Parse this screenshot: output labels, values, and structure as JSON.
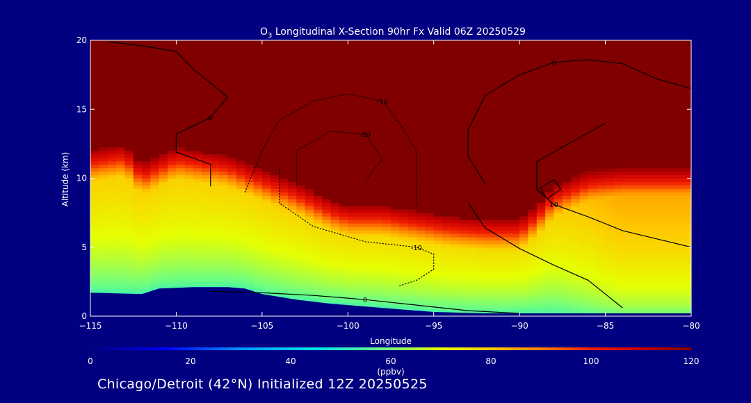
{
  "chart_data": {
    "type": "heatmap",
    "title": {
      "species": "O",
      "subscript": "3",
      "rest": " Longitudinal X-Section 90hr  Fx Valid 06Z 20250529"
    },
    "xlabel": "Longitude",
    "ylabel": "Altitude (km)",
    "xlim": [
      -115,
      -80
    ],
    "ylim": [
      0,
      20
    ],
    "x_ticks": [
      {
        "value": -115,
        "label": "−115"
      },
      {
        "value": -110,
        "label": "−110"
      },
      {
        "value": -105,
        "label": "−105"
      },
      {
        "value": -100,
        "label": "−100"
      },
      {
        "value": -95,
        "label": "−95"
      },
      {
        "value": -90,
        "label": "−90"
      },
      {
        "value": -85,
        "label": "−85"
      },
      {
        "value": -80,
        "label": "−80"
      }
    ],
    "y_ticks": [
      {
        "value": 0,
        "label": "0"
      },
      {
        "value": 5,
        "label": "5"
      },
      {
        "value": 10,
        "label": "10"
      },
      {
        "value": 15,
        "label": "15"
      },
      {
        "value": 20,
        "label": "20"
      }
    ],
    "colorbar": {
      "label": "(ppbv)",
      "range": [
        0,
        120
      ],
      "ticks": [
        {
          "value": 0,
          "label": "0"
        },
        {
          "value": 20,
          "label": "20"
        },
        {
          "value": 40,
          "label": "40"
        },
        {
          "value": 60,
          "label": "60"
        },
        {
          "value": 80,
          "label": "80"
        },
        {
          "value": 100,
          "label": "100"
        },
        {
          "value": 120,
          "label": "120"
        }
      ]
    },
    "terrain_km": [
      [
        -115,
        1.7
      ],
      [
        -112,
        1.6
      ],
      [
        -111,
        2.0
      ],
      [
        -109,
        2.1
      ],
      [
        -107,
        2.1
      ],
      [
        -106,
        2.0
      ],
      [
        -105,
        1.6
      ],
      [
        -103,
        1.2
      ],
      [
        -101,
        0.9
      ],
      [
        -99,
        0.7
      ],
      [
        -97,
        0.5
      ],
      [
        -95,
        0.3
      ],
      [
        -92,
        0.2
      ],
      [
        -90,
        0.2
      ],
      [
        -85,
        0.2
      ],
      [
        -82,
        0.2
      ],
      [
        -80,
        0.2
      ]
    ],
    "tropopause_km": [
      [
        -115,
        12.0
      ],
      [
        -113,
        12.4
      ],
      [
        -112,
        11.0
      ],
      [
        -110,
        12.2
      ],
      [
        -109,
        12.0
      ],
      [
        -107,
        11.6
      ],
      [
        -105,
        10.6
      ],
      [
        -103,
        9.6
      ],
      [
        -101,
        8.4
      ],
      [
        -100,
        8.0
      ],
      [
        -98,
        8.0
      ],
      [
        -96,
        7.6
      ],
      [
        -94,
        7.2
      ],
      [
        -92,
        7.0
      ],
      [
        -90,
        7.0
      ],
      [
        -89,
        8.0
      ],
      [
        -88,
        9.4
      ],
      [
        -86,
        10.6
      ],
      [
        -84,
        11.0
      ],
      [
        -82,
        11.0
      ],
      [
        -80,
        11.0
      ]
    ],
    "profile": {
      "above_tropopause_ppbv": 120,
      "near_surface_ppbv": 52,
      "below_tropopause_ppbv": 82,
      "east_enhancement_ppbv": 6
    },
    "contours": [
      {
        "label": "0",
        "style": "solid",
        "points": [
          [
            -114,
            19.9
          ],
          [
            -112,
            19.6
          ],
          [
            -110,
            19.2
          ],
          [
            -109,
            17.9
          ],
          [
            -107,
            15.9
          ],
          [
            -108,
            14.4
          ],
          [
            -110,
            13.2
          ],
          [
            -110,
            11.9
          ],
          [
            -108,
            11.0
          ],
          [
            -108,
            9.4
          ]
        ]
      },
      {
        "label": "0",
        "style": "solid",
        "points": [
          [
            -92,
            9.6
          ],
          [
            -93,
            11.6
          ],
          [
            -93,
            13.5
          ],
          [
            -92,
            16.0
          ],
          [
            -90,
            17.5
          ],
          [
            -88,
            18.4
          ],
          [
            -86,
            18.6
          ],
          [
            -84,
            18.3
          ],
          [
            -82,
            17.2
          ],
          [
            -80,
            16.5
          ]
        ]
      },
      {
        "label": "-10",
        "style": "dotted",
        "points": [
          [
            -106,
            9.0
          ],
          [
            -105,
            12.0
          ],
          [
            -104,
            14.2
          ],
          [
            -102,
            15.6
          ],
          [
            -100,
            16.1
          ],
          [
            -98,
            15.6
          ],
          [
            -97,
            14.0
          ],
          [
            -96,
            12.0
          ],
          [
            -96,
            9.6
          ],
          [
            -96,
            8.0
          ]
        ]
      },
      {
        "label": "-10",
        "style": "dotted",
        "points": [
          [
            -103,
            9.5
          ],
          [
            -103,
            12.0
          ],
          [
            -101,
            13.4
          ],
          [
            -99,
            13.2
          ],
          [
            -98,
            11.4
          ],
          [
            -99,
            9.8
          ]
        ]
      },
      {
        "label": "-10",
        "style": "dotted",
        "points": [
          [
            -104,
            10.6
          ],
          [
            -104,
            8.2
          ],
          [
            -102,
            6.5
          ],
          [
            -99,
            5.4
          ],
          [
            -96,
            5.0
          ],
          [
            -95,
            4.5
          ],
          [
            -95,
            3.4
          ],
          [
            -96,
            2.6
          ],
          [
            -97,
            2.2
          ]
        ]
      },
      {
        "label": "10",
        "style": "solid",
        "points": [
          [
            -85,
            14.0
          ],
          [
            -87,
            12.6
          ],
          [
            -89,
            11.2
          ],
          [
            -89,
            9.2
          ],
          [
            -88,
            8.1
          ],
          [
            -86,
            7.2
          ],
          [
            -84,
            6.2
          ],
          [
            -82,
            5.6
          ],
          [
            -80,
            5.0
          ]
        ]
      },
      {
        "label": "",
        "style": "solid",
        "points": [
          [
            -88,
            9.9
          ],
          [
            -87.6,
            9.2
          ],
          [
            -88.4,
            8.5
          ],
          [
            -88.8,
            9.3
          ],
          [
            -88,
            9.9
          ]
        ]
      },
      {
        "label": "0",
        "style": "solid",
        "points": [
          [
            -108,
            1.8
          ],
          [
            -105,
            1.7
          ],
          [
            -102,
            1.5
          ],
          [
            -99,
            1.2
          ],
          [
            -96,
            0.8
          ],
          [
            -93,
            0.4
          ],
          [
            -90,
            0.2
          ]
        ]
      },
      {
        "label": "",
        "style": "solid",
        "points": [
          [
            -93,
            8.2
          ],
          [
            -92,
            6.4
          ],
          [
            -90,
            4.9
          ],
          [
            -88,
            3.7
          ],
          [
            -86,
            2.6
          ],
          [
            -85,
            1.6
          ],
          [
            -84,
            0.6
          ]
        ]
      }
    ]
  },
  "footer": {
    "caption": "Chicago/Detroit (42°N) Initialized 12Z 20250525"
  }
}
